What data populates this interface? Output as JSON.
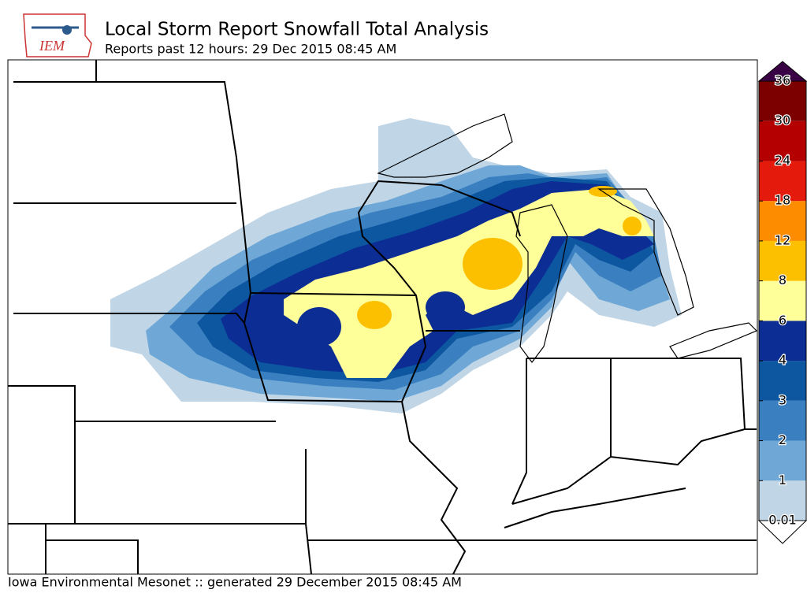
{
  "header": {
    "logo_text": "IEM",
    "title": "Local Storm Report Snowfall Total Analysis",
    "subtitle": "Reports past 12 hours: 29 Dec 2015 08:45 AM"
  },
  "legend": {
    "levels": [
      0.01,
      1,
      2,
      3,
      4,
      6,
      8,
      12,
      18,
      24,
      30,
      36
    ],
    "colors": [
      "#c0d6e6",
      "#6fa8d6",
      "#3a80c0",
      "#0d56a0",
      "#0b2d94",
      "#ffff99",
      "#fdc000",
      "#fd8c00",
      "#e31a0c",
      "#b40000",
      "#7d0000"
    ],
    "over_color": "#3a0045",
    "under_color": "#ffffff"
  },
  "footer": "Iowa Environmental Mesonet :: generated 29 December 2015 08:45 AM"
}
